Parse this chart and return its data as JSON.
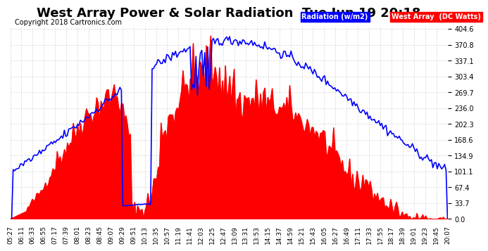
{
  "title": "West Array Power & Solar Radiation  Tue Jun 19 20:18",
  "copyright": "Copyright 2018 Cartronics.com",
  "legend_radiation": "Radiation (w/m2)",
  "legend_west": "West Array  (DC Watts)",
  "y_max": 404.6,
  "y_min": 0.0,
  "y_ticks": [
    0.0,
    33.7,
    67.4,
    101.1,
    134.9,
    168.6,
    202.3,
    236.0,
    269.7,
    303.4,
    337.1,
    370.8,
    404.6
  ],
  "bg_color": "#ffffff",
  "plot_bg_color": "#ffffff",
  "grid_color": "#cccccc",
  "radiation_color": "#0000ff",
  "west_color": "#ff0000",
  "x_tick_labels": [
    "05:27",
    "06:11",
    "06:33",
    "06:55",
    "07:17",
    "07:39",
    "08:01",
    "08:23",
    "08:45",
    "09:07",
    "09:29",
    "09:51",
    "10:13",
    "10:35",
    "10:57",
    "11:19",
    "11:41",
    "12:03",
    "12:25",
    "12:47",
    "13:09",
    "13:31",
    "13:53",
    "14:15",
    "14:37",
    "14:59",
    "15:21",
    "15:43",
    "16:05",
    "16:27",
    "16:49",
    "17:11",
    "17:33",
    "17:55",
    "18:17",
    "18:39",
    "19:01",
    "19:23",
    "19:45",
    "20:07"
  ]
}
